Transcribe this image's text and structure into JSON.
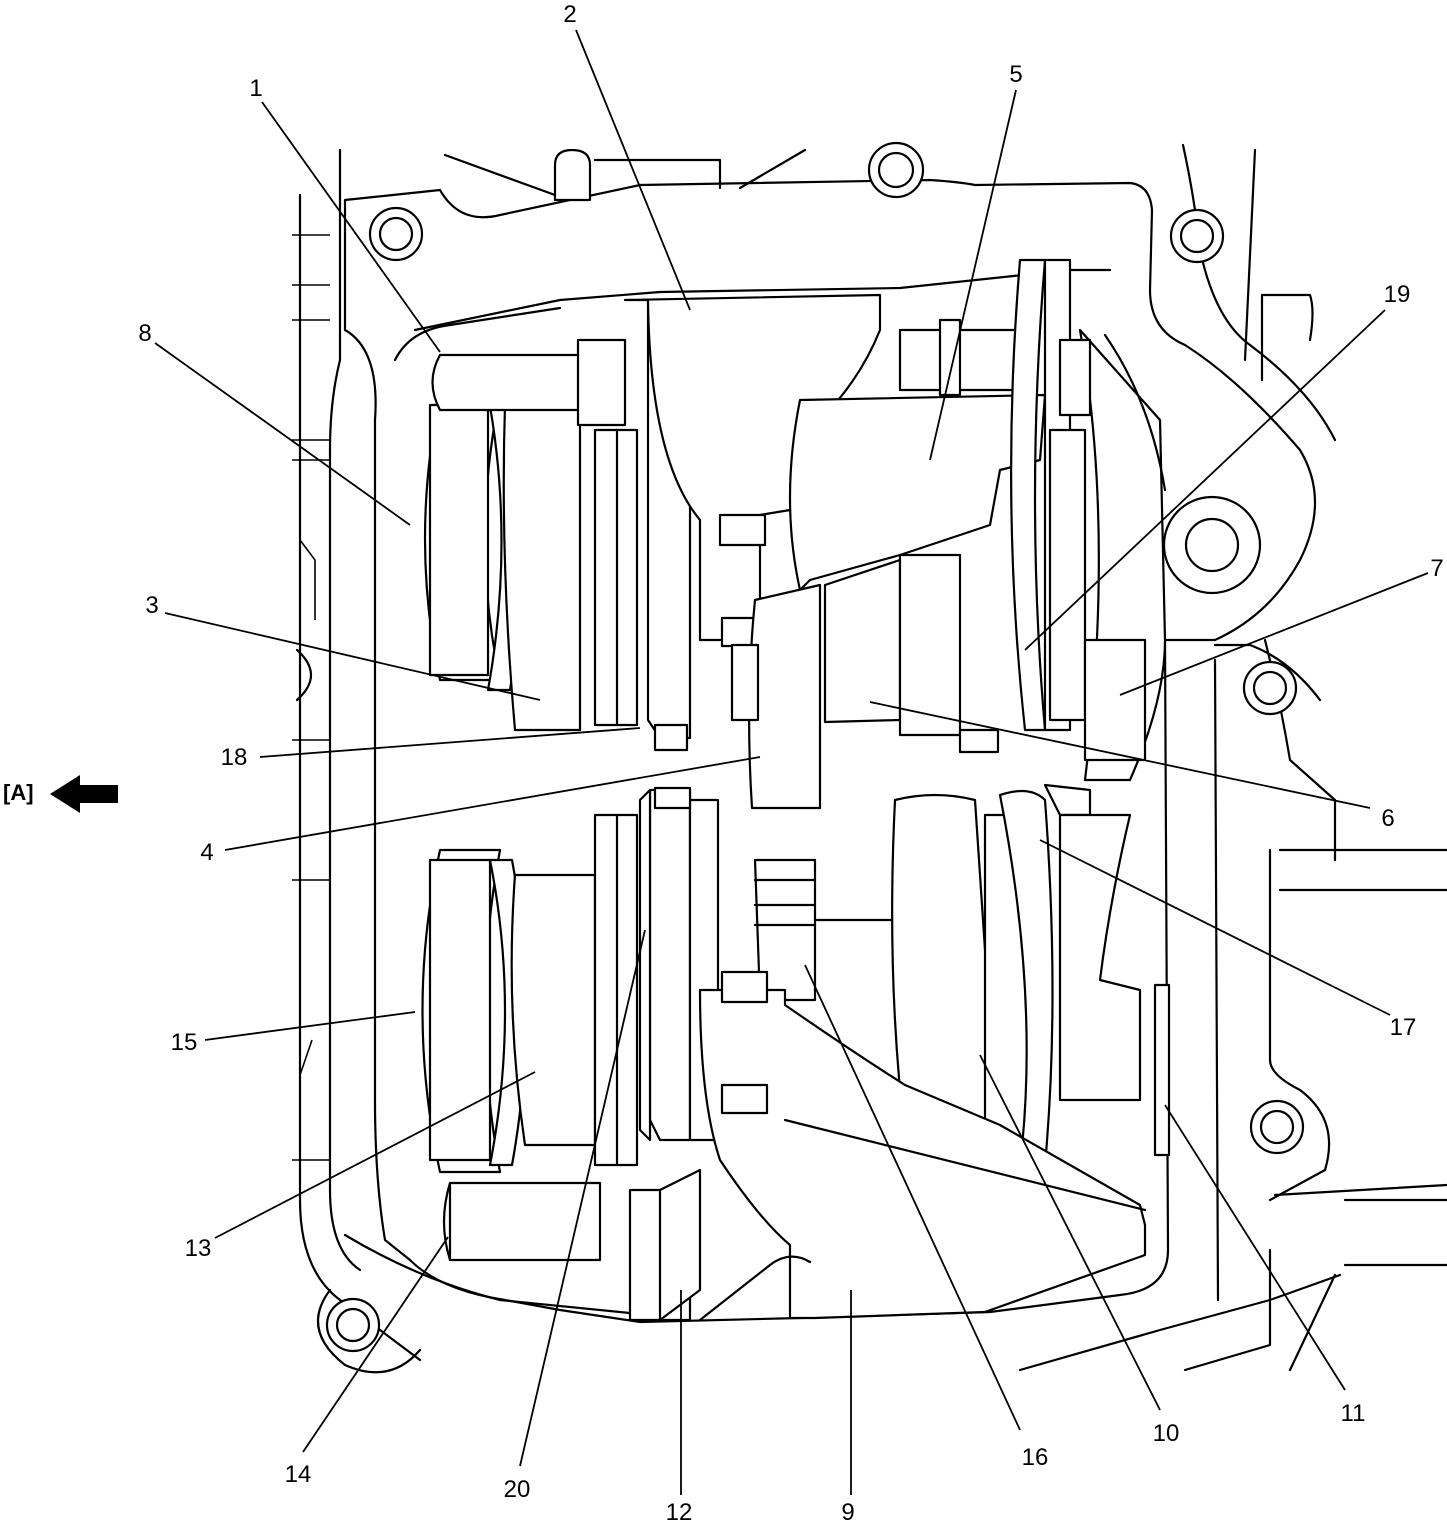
{
  "view_marker": {
    "label": "[A]",
    "icon": "arrow-left-icon"
  },
  "callouts": [
    {
      "id": "callout-1",
      "label": "1"
    },
    {
      "id": "callout-2",
      "label": "2"
    },
    {
      "id": "callout-3",
      "label": "3"
    },
    {
      "id": "callout-4",
      "label": "4"
    },
    {
      "id": "callout-5",
      "label": "5"
    },
    {
      "id": "callout-6",
      "label": "6"
    },
    {
      "id": "callout-7",
      "label": "7"
    },
    {
      "id": "callout-8",
      "label": "8"
    },
    {
      "id": "callout-9",
      "label": "9"
    },
    {
      "id": "callout-10",
      "label": "10"
    },
    {
      "id": "callout-11",
      "label": "11"
    },
    {
      "id": "callout-12",
      "label": "12"
    },
    {
      "id": "callout-13",
      "label": "13"
    },
    {
      "id": "callout-14",
      "label": "14"
    },
    {
      "id": "callout-15",
      "label": "15"
    },
    {
      "id": "callout-16",
      "label": "16"
    },
    {
      "id": "callout-17",
      "label": "17"
    },
    {
      "id": "callout-18",
      "label": "18"
    },
    {
      "id": "callout-19",
      "label": "19"
    },
    {
      "id": "callout-20",
      "label": "20"
    }
  ]
}
